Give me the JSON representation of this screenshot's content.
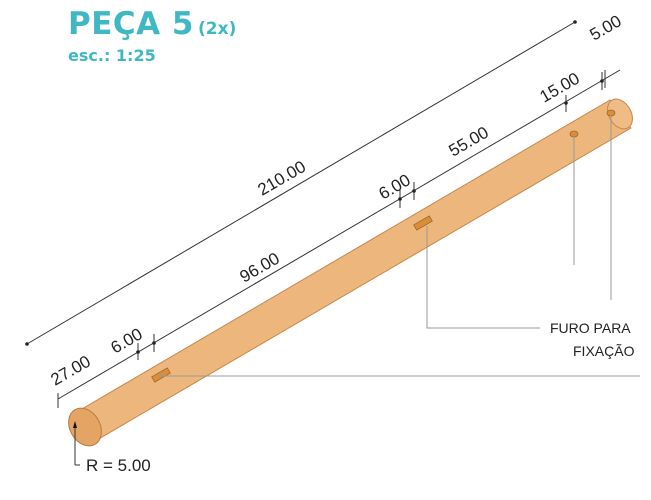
{
  "title": "PEÇA 5",
  "quantity": "(2x)",
  "scale": "esc.: 1:25",
  "dimensions": {
    "total": "210.00",
    "top_end": "5.00",
    "top_second": "15.00",
    "top_span": "55.00",
    "middle_slot": "6.00",
    "middle_span": "96.00",
    "left_slot": "6.00",
    "left_offset": "27.00"
  },
  "radius": "R = 5.00",
  "hole_label_line1": "FURO PARA",
  "hole_label_line2": "FIXAÇÃO",
  "colors": {
    "accent": "#3fb8c3",
    "beam": "#edb67c",
    "beam_edge": "#c8874a",
    "slot": "#d98e3b"
  }
}
